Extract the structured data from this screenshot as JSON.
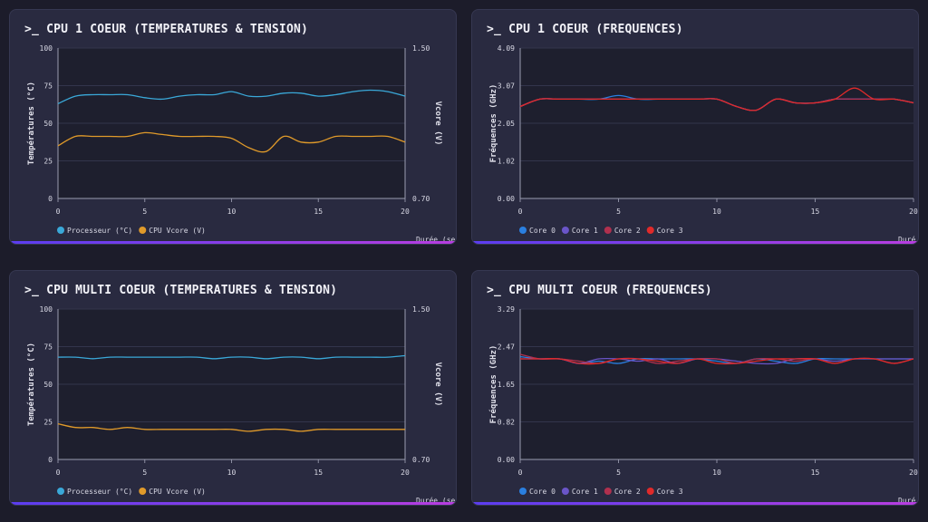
{
  "colors": {
    "processeur": "#3aa8d8",
    "vcore": "#e09a2a",
    "core0": "#2a7fe0",
    "core1": "#6a55c8",
    "core2": "#b0304e",
    "core3": "#e02a2a"
  },
  "chart_data": [
    {
      "type": "line",
      "title": ">_ CPU 1 COEUR (TEMPERATURES & TENSION)",
      "xlabel": "Durée (sec",
      "ylabel": "Températures (°C)",
      "y2label": "Vcore (V)",
      "xlim": [
        0,
        20
      ],
      "ylim": [
        0,
        100
      ],
      "y2lim": [
        0.7,
        1.5
      ],
      "xticks": [
        "0",
        "5",
        "10",
        "15",
        "20"
      ],
      "yticks": [
        "0",
        "25",
        "50",
        "75",
        "100"
      ],
      "y2ticks": [
        "0.70",
        "1.50"
      ],
      "grid": true,
      "legend": "bottom-left",
      "x": [
        0,
        1,
        2,
        3,
        4,
        5,
        6,
        7,
        8,
        9,
        10,
        11,
        12,
        13,
        14,
        15,
        16,
        17,
        18,
        19,
        20
      ],
      "series": [
        {
          "name": "Processeur (°C)",
          "axis": "left",
          "color_key": "processeur",
          "values": [
            63,
            68,
            69,
            69,
            69,
            67,
            66,
            68,
            69,
            69,
            71,
            68,
            68,
            70,
            70,
            68,
            69,
            71,
            72,
            71,
            68
          ]
        },
        {
          "name": "CPU Vcore (V)",
          "axis": "right",
          "color_key": "vcore",
          "values": [
            0.98,
            1.03,
            1.03,
            1.03,
            1.03,
            1.05,
            1.04,
            1.03,
            1.03,
            1.03,
            1.02,
            0.97,
            0.95,
            1.03,
            1.0,
            1.0,
            1.03,
            1.03,
            1.03,
            1.03,
            1.0
          ]
        }
      ]
    },
    {
      "type": "line",
      "title": ">_ CPU 1 COEUR (FREQUENCES)",
      "xlabel": "Duré",
      "ylabel": "Fréquences (GHz)",
      "xlim": [
        0,
        20
      ],
      "ylim": [
        0,
        4.09
      ],
      "xticks": [
        "0",
        "5",
        "10",
        "15",
        "20"
      ],
      "yticks": [
        "0.00",
        "1.02",
        "2.05",
        "3.07",
        "4.09"
      ],
      "grid": true,
      "legend": "bottom-left",
      "x": [
        0,
        1,
        2,
        3,
        4,
        5,
        6,
        7,
        8,
        9,
        10,
        11,
        12,
        13,
        14,
        15,
        16,
        17,
        18,
        19,
        20
      ],
      "series": [
        {
          "name": "Core 0",
          "color_key": "core0",
          "values": [
            2.5,
            2.7,
            2.7,
            2.7,
            2.7,
            2.8,
            2.7,
            2.7,
            2.7,
            2.7,
            2.7,
            2.5,
            2.4,
            2.7,
            2.6,
            2.6,
            2.7,
            2.7,
            2.7,
            2.7,
            2.6
          ]
        },
        {
          "name": "Core 1",
          "color_key": "core1",
          "values": [
            2.5,
            2.7,
            2.7,
            2.7,
            2.7,
            2.7,
            2.7,
            2.7,
            2.7,
            2.7,
            2.7,
            2.5,
            2.4,
            2.7,
            2.6,
            2.6,
            2.7,
            2.7,
            2.7,
            2.7,
            2.6
          ]
        },
        {
          "name": "Core 2",
          "color_key": "core2",
          "values": [
            2.5,
            2.7,
            2.7,
            2.7,
            2.7,
            2.7,
            2.7,
            2.7,
            2.7,
            2.7,
            2.7,
            2.5,
            2.4,
            2.7,
            2.6,
            2.6,
            2.7,
            2.7,
            2.7,
            2.7,
            2.6
          ]
        },
        {
          "name": "Core 3",
          "color_key": "core3",
          "values": [
            2.5,
            2.7,
            2.7,
            2.7,
            2.7,
            2.7,
            2.7,
            2.7,
            2.7,
            2.7,
            2.7,
            2.5,
            2.4,
            2.7,
            2.6,
            2.6,
            2.7,
            3.0,
            2.7,
            2.7,
            2.6
          ]
        }
      ]
    },
    {
      "type": "line",
      "title": ">_ CPU MULTI COEUR (TEMPERATURES & TENSION)",
      "xlabel": "Durée (sec",
      "ylabel": "Températures (°C)",
      "y2label": "Vcore (V)",
      "xlim": [
        0,
        20
      ],
      "ylim": [
        0,
        100
      ],
      "y2lim": [
        0.7,
        1.5
      ],
      "xticks": [
        "0",
        "5",
        "10",
        "15",
        "20"
      ],
      "yticks": [
        "0",
        "25",
        "50",
        "75",
        "100"
      ],
      "y2ticks": [
        "0.70",
        "1.50"
      ],
      "grid": true,
      "legend": "bottom-left",
      "x": [
        0,
        1,
        2,
        3,
        4,
        5,
        6,
        7,
        8,
        9,
        10,
        11,
        12,
        13,
        14,
        15,
        16,
        17,
        18,
        19,
        20
      ],
      "series": [
        {
          "name": "Processeur (°C)",
          "axis": "left",
          "color_key": "processeur",
          "values": [
            68,
            68,
            67,
            68,
            68,
            68,
            68,
            68,
            68,
            67,
            68,
            68,
            67,
            68,
            68,
            67,
            68,
            68,
            68,
            68,
            69
          ]
        },
        {
          "name": "CPU Vcore (V)",
          "axis": "right",
          "color_key": "vcore",
          "values": [
            0.89,
            0.87,
            0.87,
            0.86,
            0.87,
            0.86,
            0.86,
            0.86,
            0.86,
            0.86,
            0.86,
            0.85,
            0.86,
            0.86,
            0.85,
            0.86,
            0.86,
            0.86,
            0.86,
            0.86,
            0.86
          ]
        }
      ]
    },
    {
      "type": "line",
      "title": ">_ CPU MULTI COEUR (FREQUENCES)",
      "xlabel": "Duré",
      "ylabel": "Fréquences (GHz)",
      "xlim": [
        0,
        20
      ],
      "ylim": [
        0,
        3.29
      ],
      "xticks": [
        "0",
        "5",
        "10",
        "15",
        "20"
      ],
      "yticks": [
        "0.00",
        "0.82",
        "1.65",
        "2.47",
        "3.29"
      ],
      "grid": true,
      "legend": "bottom-left",
      "x": [
        0,
        1,
        2,
        3,
        4,
        5,
        6,
        7,
        8,
        9,
        10,
        11,
        12,
        13,
        14,
        15,
        16,
        17,
        18,
        19,
        20
      ],
      "series": [
        {
          "name": "Core 0",
          "color_key": "core0",
          "values": [
            2.25,
            2.2,
            2.2,
            2.1,
            2.15,
            2.1,
            2.2,
            2.2,
            2.2,
            2.2,
            2.15,
            2.1,
            2.2,
            2.15,
            2.1,
            2.2,
            2.2,
            2.2,
            2.2,
            2.2,
            2.2
          ]
        },
        {
          "name": "Core 1",
          "color_key": "core1",
          "values": [
            2.2,
            2.2,
            2.2,
            2.1,
            2.2,
            2.2,
            2.15,
            2.2,
            2.1,
            2.2,
            2.2,
            2.15,
            2.1,
            2.1,
            2.2,
            2.2,
            2.15,
            2.2,
            2.2,
            2.2,
            2.2
          ]
        },
        {
          "name": "Core 2",
          "color_key": "core2",
          "values": [
            2.3,
            2.2,
            2.2,
            2.15,
            2.1,
            2.2,
            2.2,
            2.1,
            2.15,
            2.2,
            2.2,
            2.1,
            2.2,
            2.2,
            2.15,
            2.2,
            2.1,
            2.2,
            2.2,
            2.1,
            2.2
          ]
        },
        {
          "name": "Core 3",
          "color_key": "core3",
          "values": [
            2.2,
            2.2,
            2.2,
            2.1,
            2.1,
            2.2,
            2.2,
            2.15,
            2.1,
            2.2,
            2.1,
            2.1,
            2.15,
            2.2,
            2.2,
            2.2,
            2.1,
            2.2,
            2.2,
            2.1,
            2.2
          ]
        }
      ]
    }
  ]
}
